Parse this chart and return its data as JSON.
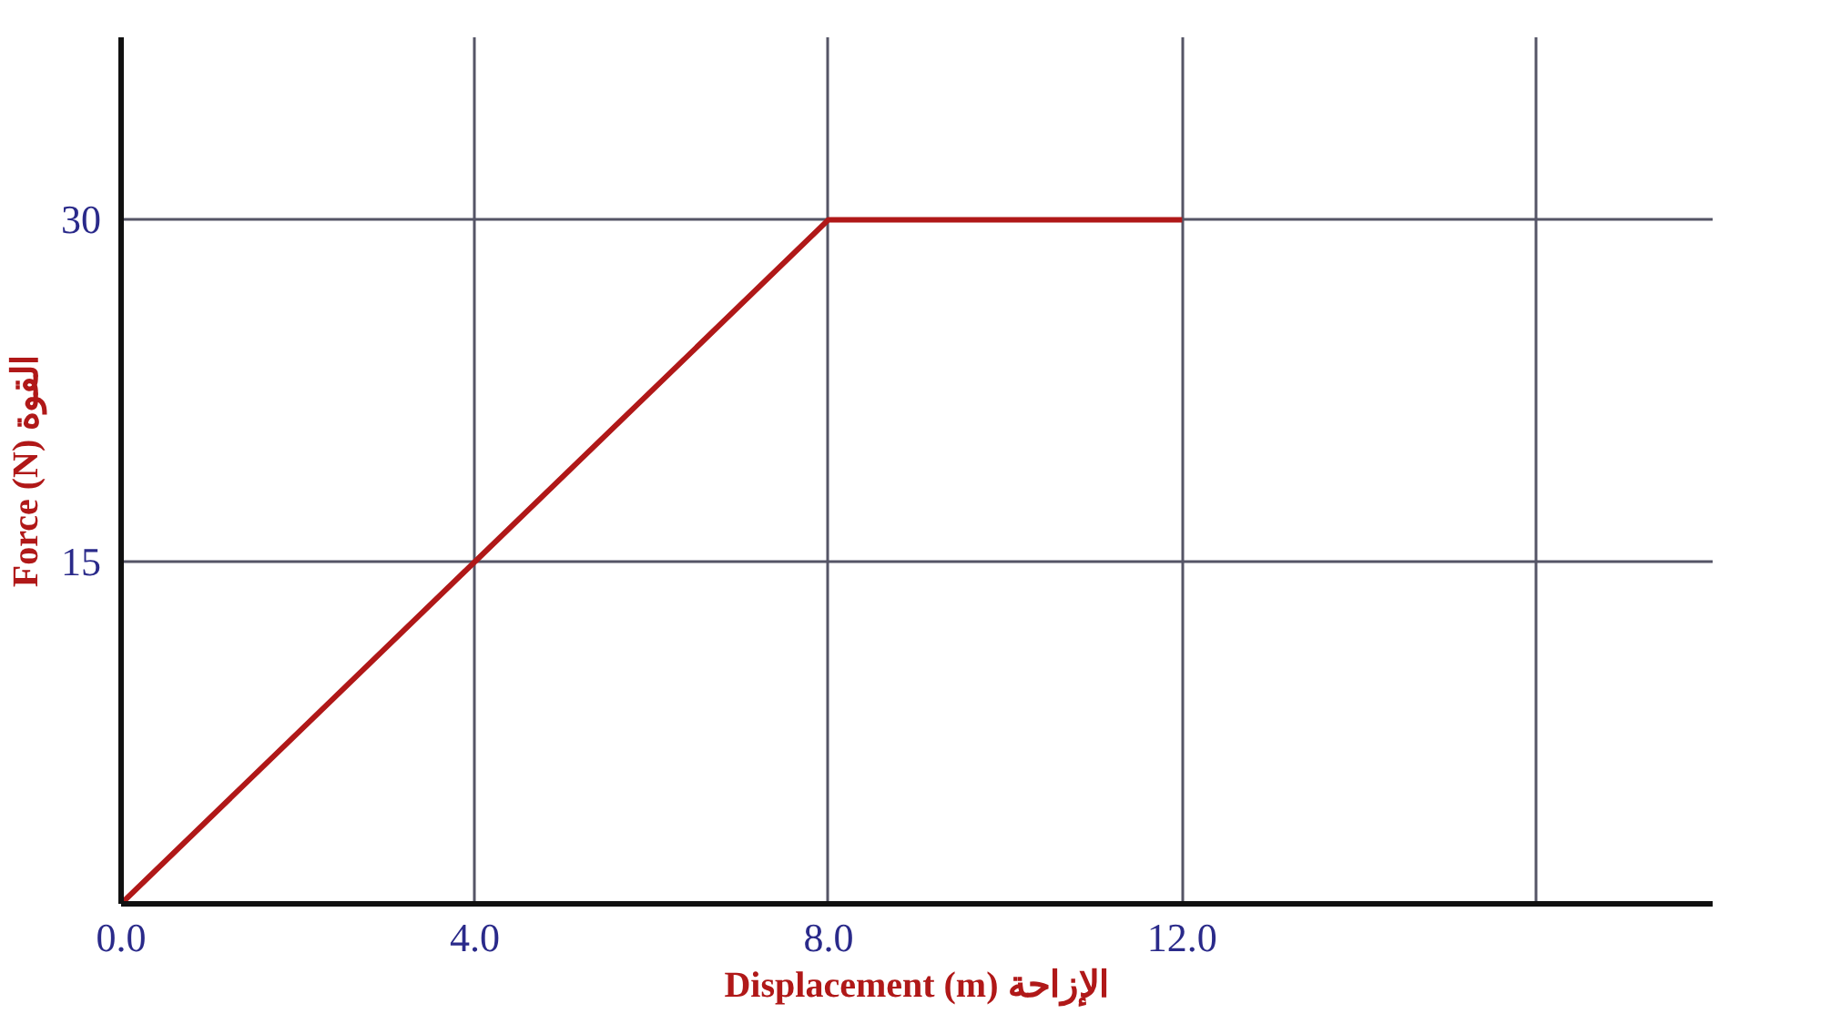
{
  "chart_data": {
    "type": "line",
    "xlabel": "Displacement (m) الإزاحة",
    "ylabel": "Force (N) القوة",
    "x": [
      0,
      8,
      12
    ],
    "series": [
      {
        "color": "#b01818",
        "values": [
          0,
          30,
          30
        ]
      }
    ],
    "xlim": [
      0,
      18
    ],
    "ylim": [
      0,
      38
    ],
    "xticks": [
      {
        "value": 0,
        "label": "0.0"
      },
      {
        "value": 4,
        "label": "4.0"
      },
      {
        "value": 8,
        "label": "8.0"
      },
      {
        "value": 12,
        "label": "12.0"
      },
      {
        "value": 16,
        "label": null
      }
    ],
    "yticks": [
      15,
      30
    ],
    "grid": true,
    "marker": "none",
    "line_style": "solid"
  }
}
